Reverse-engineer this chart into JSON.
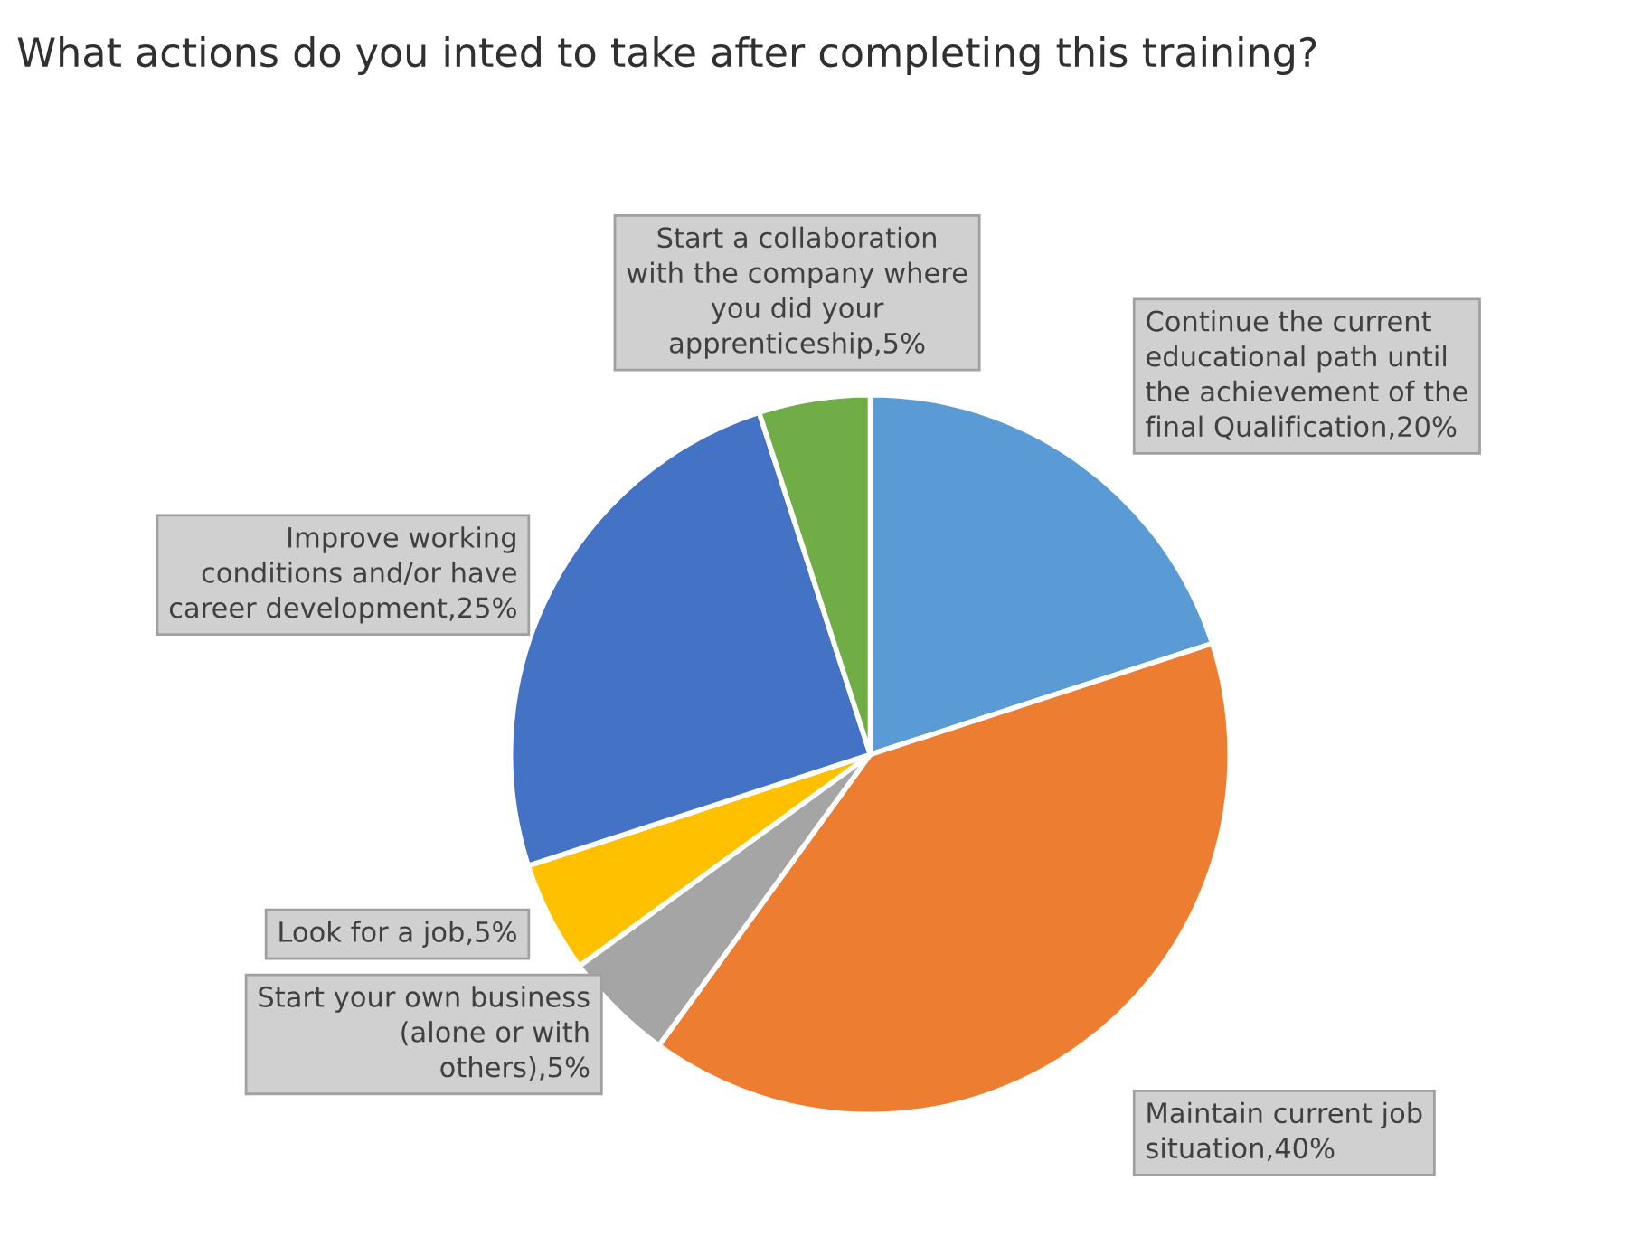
{
  "chart_data": {
    "type": "pie",
    "title": "What actions do you inted to take after completing this training?",
    "categories": [
      "Continue the current educational path until the achievement of the final Qualification",
      "Maintain current job situation",
      "Start your own business (alone or with others)",
      "Look for a job",
      "Improve working conditions and/or have career development",
      "Start a collaboration with the company where you did your apprenticeship"
    ],
    "values": [
      20,
      40,
      5,
      5,
      25,
      5
    ],
    "value_labels": [
      "20%",
      "40%",
      "5%",
      "5%",
      "25%",
      "5%"
    ],
    "colors": [
      "#5b9bd5",
      "#ed7d31",
      "#a5a5a5",
      "#ffc000",
      "#4472c4",
      "#70ad47"
    ],
    "legend": false
  }
}
